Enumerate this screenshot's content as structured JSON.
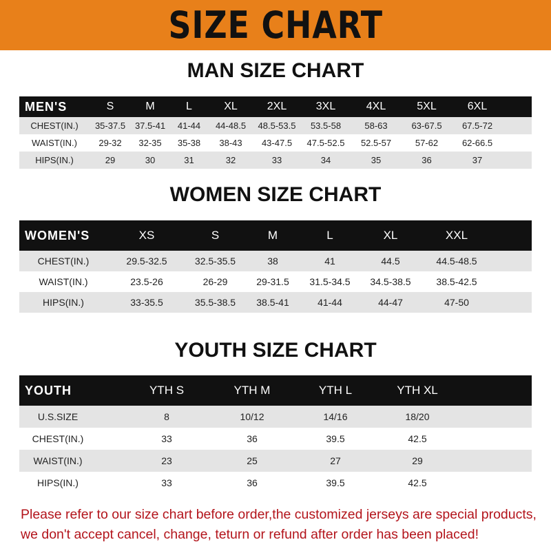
{
  "title": "SIZE CHART",
  "men": {
    "heading": "MAN SIZE CHART",
    "header": [
      "MEN'S",
      "S",
      "M",
      "L",
      "XL",
      "2XL",
      "3XL",
      "4XL",
      "5XL",
      "6XL"
    ],
    "rows": [
      [
        "CHEST(IN.)",
        "35-37.5",
        "37.5-41",
        "41-44",
        "44-48.5",
        "48.5-53.5",
        "53.5-58",
        "58-63",
        "63-67.5",
        "67.5-72"
      ],
      [
        "WAIST(IN.)",
        "29-32",
        "32-35",
        "35-38",
        "38-43",
        "43-47.5",
        "47.5-52.5",
        "52.5-57",
        "57-62",
        "62-66.5"
      ],
      [
        "HIPS(IN.)",
        "29",
        "30",
        "31",
        "32",
        "33",
        "34",
        "35",
        "36",
        "37"
      ]
    ]
  },
  "women": {
    "heading": "WOMEN SIZE CHART",
    "header": [
      "WOMEN'S",
      "XS",
      "S",
      "M",
      "L",
      "XL",
      "XXL"
    ],
    "rows": [
      [
        "CHEST(IN.)",
        "29.5-32.5",
        "32.5-35.5",
        "38",
        "41",
        "44.5",
        "44.5-48.5"
      ],
      [
        "WAIST(IN.)",
        "23.5-26",
        "26-29",
        "29-31.5",
        "31.5-34.5",
        "34.5-38.5",
        "38.5-42.5"
      ],
      [
        "HIPS(IN.)",
        "33-35.5",
        "35.5-38.5",
        "38.5-41",
        "41-44",
        "44-47",
        "47-50"
      ]
    ]
  },
  "youth": {
    "heading": "YOUTH SIZE CHART",
    "header": [
      "YOUTH",
      "YTH S",
      "YTH M",
      "YTH L",
      "YTH XL"
    ],
    "rows": [
      [
        "U.S.SIZE",
        "8",
        "10/12",
        "14/16",
        "18/20"
      ],
      [
        "CHEST(IN.)",
        "33",
        "36",
        "39.5",
        "42.5"
      ],
      [
        "WAIST(IN.)",
        "23",
        "25",
        "27",
        "29"
      ],
      [
        "HIPS(IN.)",
        "33",
        "36",
        "39.5",
        "42.5"
      ]
    ]
  },
  "note": [
    "Please refer to our size chart before order,the customized jerseys are special products,",
    "we don't accept cancel, change, teturn or refund after order has been placed!"
  ],
  "colors": {
    "banner": "#e8801a",
    "header_row": "#111111",
    "stripe": "#e4e4e4",
    "note": "#b3141b"
  }
}
